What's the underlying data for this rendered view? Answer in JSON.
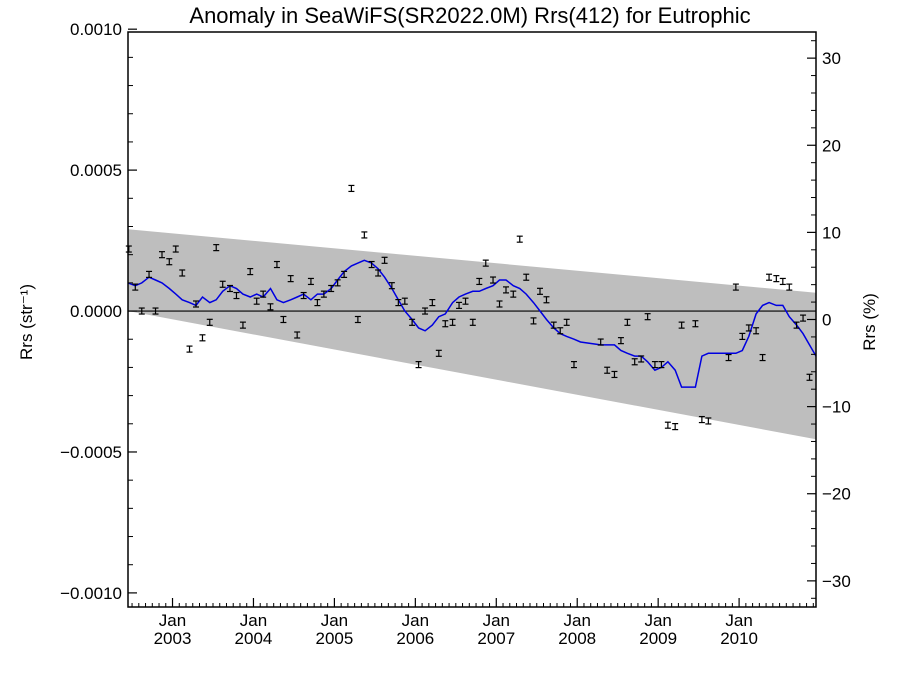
{
  "chart_data": {
    "type": "line",
    "title": "Anomaly in SeaWiFS(SR2022.0M) Rrs(412) for Eutrophic",
    "ylabel_left": "Rrs (str⁻¹)",
    "ylabel_right": "Rrs (%)",
    "xlim": [
      2002.45,
      2010.95
    ],
    "ylim": [
      -0.00105,
      0.00099
    ],
    "ylim_right": [
      -33.0,
      33.0
    ],
    "left_ticks": [
      {
        "value": 0.001,
        "label": "0.0010"
      },
      {
        "value": 0.0005,
        "label": "0.0005"
      },
      {
        "value": 0.0,
        "label": "0.0000"
      },
      {
        "value": -0.0005,
        "label": "−0.0005"
      },
      {
        "value": -0.001,
        "label": "−0.0010"
      }
    ],
    "right_ticks": [
      {
        "value": 30,
        "label": "30"
      },
      {
        "value": 20,
        "label": "20"
      },
      {
        "value": 10,
        "label": "10"
      },
      {
        "value": 0,
        "label": "0"
      },
      {
        "value": -10,
        "label": "−10"
      },
      {
        "value": -20,
        "label": "−20"
      },
      {
        "value": -30,
        "label": "−30"
      }
    ],
    "x_major_ticks": [
      {
        "value": 2003.0,
        "month": "Jan",
        "year": "2003"
      },
      {
        "value": 2004.0,
        "month": "Jan",
        "year": "2004"
      },
      {
        "value": 2005.0,
        "month": "Jan",
        "year": "2005"
      },
      {
        "value": 2006.0,
        "month": "Jan",
        "year": "2006"
      },
      {
        "value": 2007.0,
        "month": "Jan",
        "year": "2007"
      },
      {
        "value": 2008.0,
        "month": "Jan",
        "year": "2008"
      },
      {
        "value": 2009.0,
        "month": "Jan",
        "year": "2009"
      },
      {
        "value": 2010.0,
        "month": "Jan",
        "year": "2010"
      }
    ],
    "envelope": {
      "x": [
        2002.45,
        2010.95
      ],
      "upper": [
        0.00029,
        6.5e-05
      ],
      "lower": [
        0.0,
        -0.000455
      ],
      "color": "#bebebe"
    },
    "zero_line": 0.0,
    "points": {
      "name": "monthly anomaly",
      "color": "#000000",
      "x": [
        2002.46,
        2002.54,
        2002.62,
        2002.71,
        2002.79,
        2002.87,
        2002.96,
        2003.04,
        2003.12,
        2003.21,
        2003.29,
        2003.37,
        2003.46,
        2003.54,
        2003.62,
        2003.71,
        2003.79,
        2003.87,
        2003.96,
        2004.04,
        2004.12,
        2004.21,
        2004.29,
        2004.37,
        2004.46,
        2004.54,
        2004.62,
        2004.71,
        2004.79,
        2004.87,
        2004.96,
        2005.04,
        2005.12,
        2005.21,
        2005.29,
        2005.37,
        2005.46,
        2005.54,
        2005.62,
        2005.71,
        2005.79,
        2005.87,
        2005.96,
        2006.04,
        2006.12,
        2006.21,
        2006.29,
        2006.37,
        2006.46,
        2006.54,
        2006.62,
        2006.71,
        2006.79,
        2006.87,
        2006.96,
        2007.04,
        2007.12,
        2007.21,
        2007.29,
        2007.37,
        2007.46,
        2007.54,
        2007.62,
        2007.71,
        2007.79,
        2007.87,
        2007.96,
        2008.04,
        2008.12,
        2008.21,
        2008.29,
        2008.37,
        2008.46,
        2008.54,
        2008.62,
        2008.71,
        2008.79,
        2008.87,
        2008.96,
        2009.04,
        2009.12,
        2009.21,
        2009.29,
        2009.37,
        2009.46,
        2009.54,
        2009.62,
        2009.71,
        2009.79,
        2009.87,
        2009.96,
        2010.04,
        2010.12,
        2010.21,
        2010.29,
        2010.37,
        2010.46,
        2010.54,
        2010.62,
        2010.71,
        2010.79,
        2010.87,
        2010.94
      ],
      "y": [
        0.00022,
        8.5e-05,
        0.0,
        0.00013,
        0.0,
        0.0002,
        0.000175,
        0.00022,
        0.000135,
        -0.000135,
        2.5e-05,
        -9.5e-05,
        -4e-05,
        0.000225,
        9.5e-05,
        8e-05,
        5.5e-05,
        -5e-05,
        0.00014,
        3.5e-05,
        6e-05,
        1.5e-05,
        0.000165,
        -3e-05,
        0.000115,
        -8.5e-05,
        5.5e-05,
        0.000105,
        3e-05,
        6e-05,
        8e-05,
        0.0001,
        0.00013,
        0.000435,
        -3e-05,
        0.00027,
        0.000165,
        0.000135,
        0.00018,
        9e-05,
        3e-05,
        3.5e-05,
        -4e-05,
        -0.00019,
        0.0,
        3e-05,
        -0.00015,
        -4.5e-05,
        -4e-05,
        2e-05,
        3.5e-05,
        -4e-05,
        0.000105,
        0.00017,
        0.00011,
        2.5e-05,
        7.5e-05,
        6e-05,
        0.000255,
        0.00012,
        -3.5e-05,
        7e-05,
        4e-05,
        -5e-05,
        -7e-05,
        -4e-05,
        -0.00019,
        null,
        null,
        null,
        -0.00011,
        -0.00021,
        -0.000225,
        -0.000105,
        -4e-05,
        -0.00018,
        -0.00017,
        -2e-05,
        -0.00019,
        -0.00019,
        -0.000405,
        -0.00041,
        -5e-05,
        null,
        -4.5e-05,
        -0.000385,
        -0.00039,
        null,
        null,
        -0.000165,
        8.5e-05,
        -9e-05,
        -6e-05,
        -7e-05,
        -0.000165,
        0.00012,
        0.000115,
        0.000105,
        8.5e-05,
        -5e-05,
        -2.5e-05,
        -0.000235,
        null
      ]
    },
    "smoothed": {
      "name": "running mean",
      "color": "#0000e0",
      "x": [
        2002.45,
        2002.54,
        2002.62,
        2002.71,
        2002.79,
        2002.87,
        2002.96,
        2003.04,
        2003.12,
        2003.21,
        2003.29,
        2003.37,
        2003.46,
        2003.54,
        2003.62,
        2003.71,
        2003.79,
        2003.87,
        2003.96,
        2004.04,
        2004.12,
        2004.21,
        2004.29,
        2004.37,
        2004.46,
        2004.54,
        2004.62,
        2004.71,
        2004.79,
        2004.87,
        2004.96,
        2005.04,
        2005.12,
        2005.21,
        2005.29,
        2005.37,
        2005.46,
        2005.54,
        2005.62,
        2005.71,
        2005.79,
        2005.87,
        2005.96,
        2006.04,
        2006.12,
        2006.21,
        2006.29,
        2006.37,
        2006.46,
        2006.54,
        2006.62,
        2006.71,
        2006.79,
        2006.87,
        2006.96,
        2007.04,
        2007.12,
        2007.21,
        2007.29,
        2007.37,
        2007.46,
        2007.54,
        2007.62,
        2007.71,
        2007.79,
        2007.87,
        2007.96,
        2008.04,
        2008.29,
        2008.37,
        2008.46,
        2008.54,
        2008.62,
        2008.71,
        2008.79,
        2008.87,
        2008.96,
        2009.04,
        2009.12,
        2009.21,
        2009.29,
        2009.37,
        2009.46,
        2009.54,
        2009.62,
        2009.71,
        2009.96,
        2010.04,
        2010.12,
        2010.21,
        2010.29,
        2010.37,
        2010.46,
        2010.54,
        2010.62,
        2010.71,
        2010.79,
        2010.87,
        2010.95
      ],
      "y": [
        0.0001,
        9e-05,
        0.0001,
        0.00012,
        0.00011,
        0.0001,
        8e-05,
        6e-05,
        4e-05,
        3e-05,
        2e-05,
        5e-05,
        3e-05,
        4e-05,
        7e-05,
        9e-05,
        8e-05,
        6e-05,
        5e-05,
        6e-05,
        5e-05,
        8e-05,
        4e-05,
        3e-05,
        4e-05,
        5e-05,
        6e-05,
        4e-05,
        6e-05,
        6e-05,
        8e-05,
        0.00011,
        0.00014,
        0.00016,
        0.00017,
        0.00018,
        0.00017,
        0.00015,
        0.00012,
        8e-05,
        4e-05,
        0.0,
        -3e-05,
        -6e-05,
        -7e-05,
        -5e-05,
        -2e-05,
        -1e-05,
        3e-05,
        5e-05,
        6e-05,
        7e-05,
        7e-05,
        8e-05,
        9e-05,
        0.00011,
        0.00011,
        9e-05,
        8e-05,
        6e-05,
        3e-05,
        0.0,
        -3e-05,
        -6e-05,
        -8e-05,
        -9e-05,
        -0.0001,
        -0.00011,
        -0.00012,
        -0.00012,
        -0.00012,
        -0.00014,
        -0.00015,
        -0.00016,
        -0.00016,
        -0.00018,
        -0.00021,
        -0.0002,
        -0.00018,
        -0.00021,
        -0.00027,
        -0.00027,
        -0.00027,
        -0.00016,
        -0.00015,
        -0.00015,
        -0.00015,
        -0.00014,
        -9e-05,
        -1e-05,
        2e-05,
        3e-05,
        2e-05,
        2e-05,
        -2e-05,
        -5e-05,
        -8e-05,
        -0.00012,
        -0.00016
      ]
    }
  }
}
